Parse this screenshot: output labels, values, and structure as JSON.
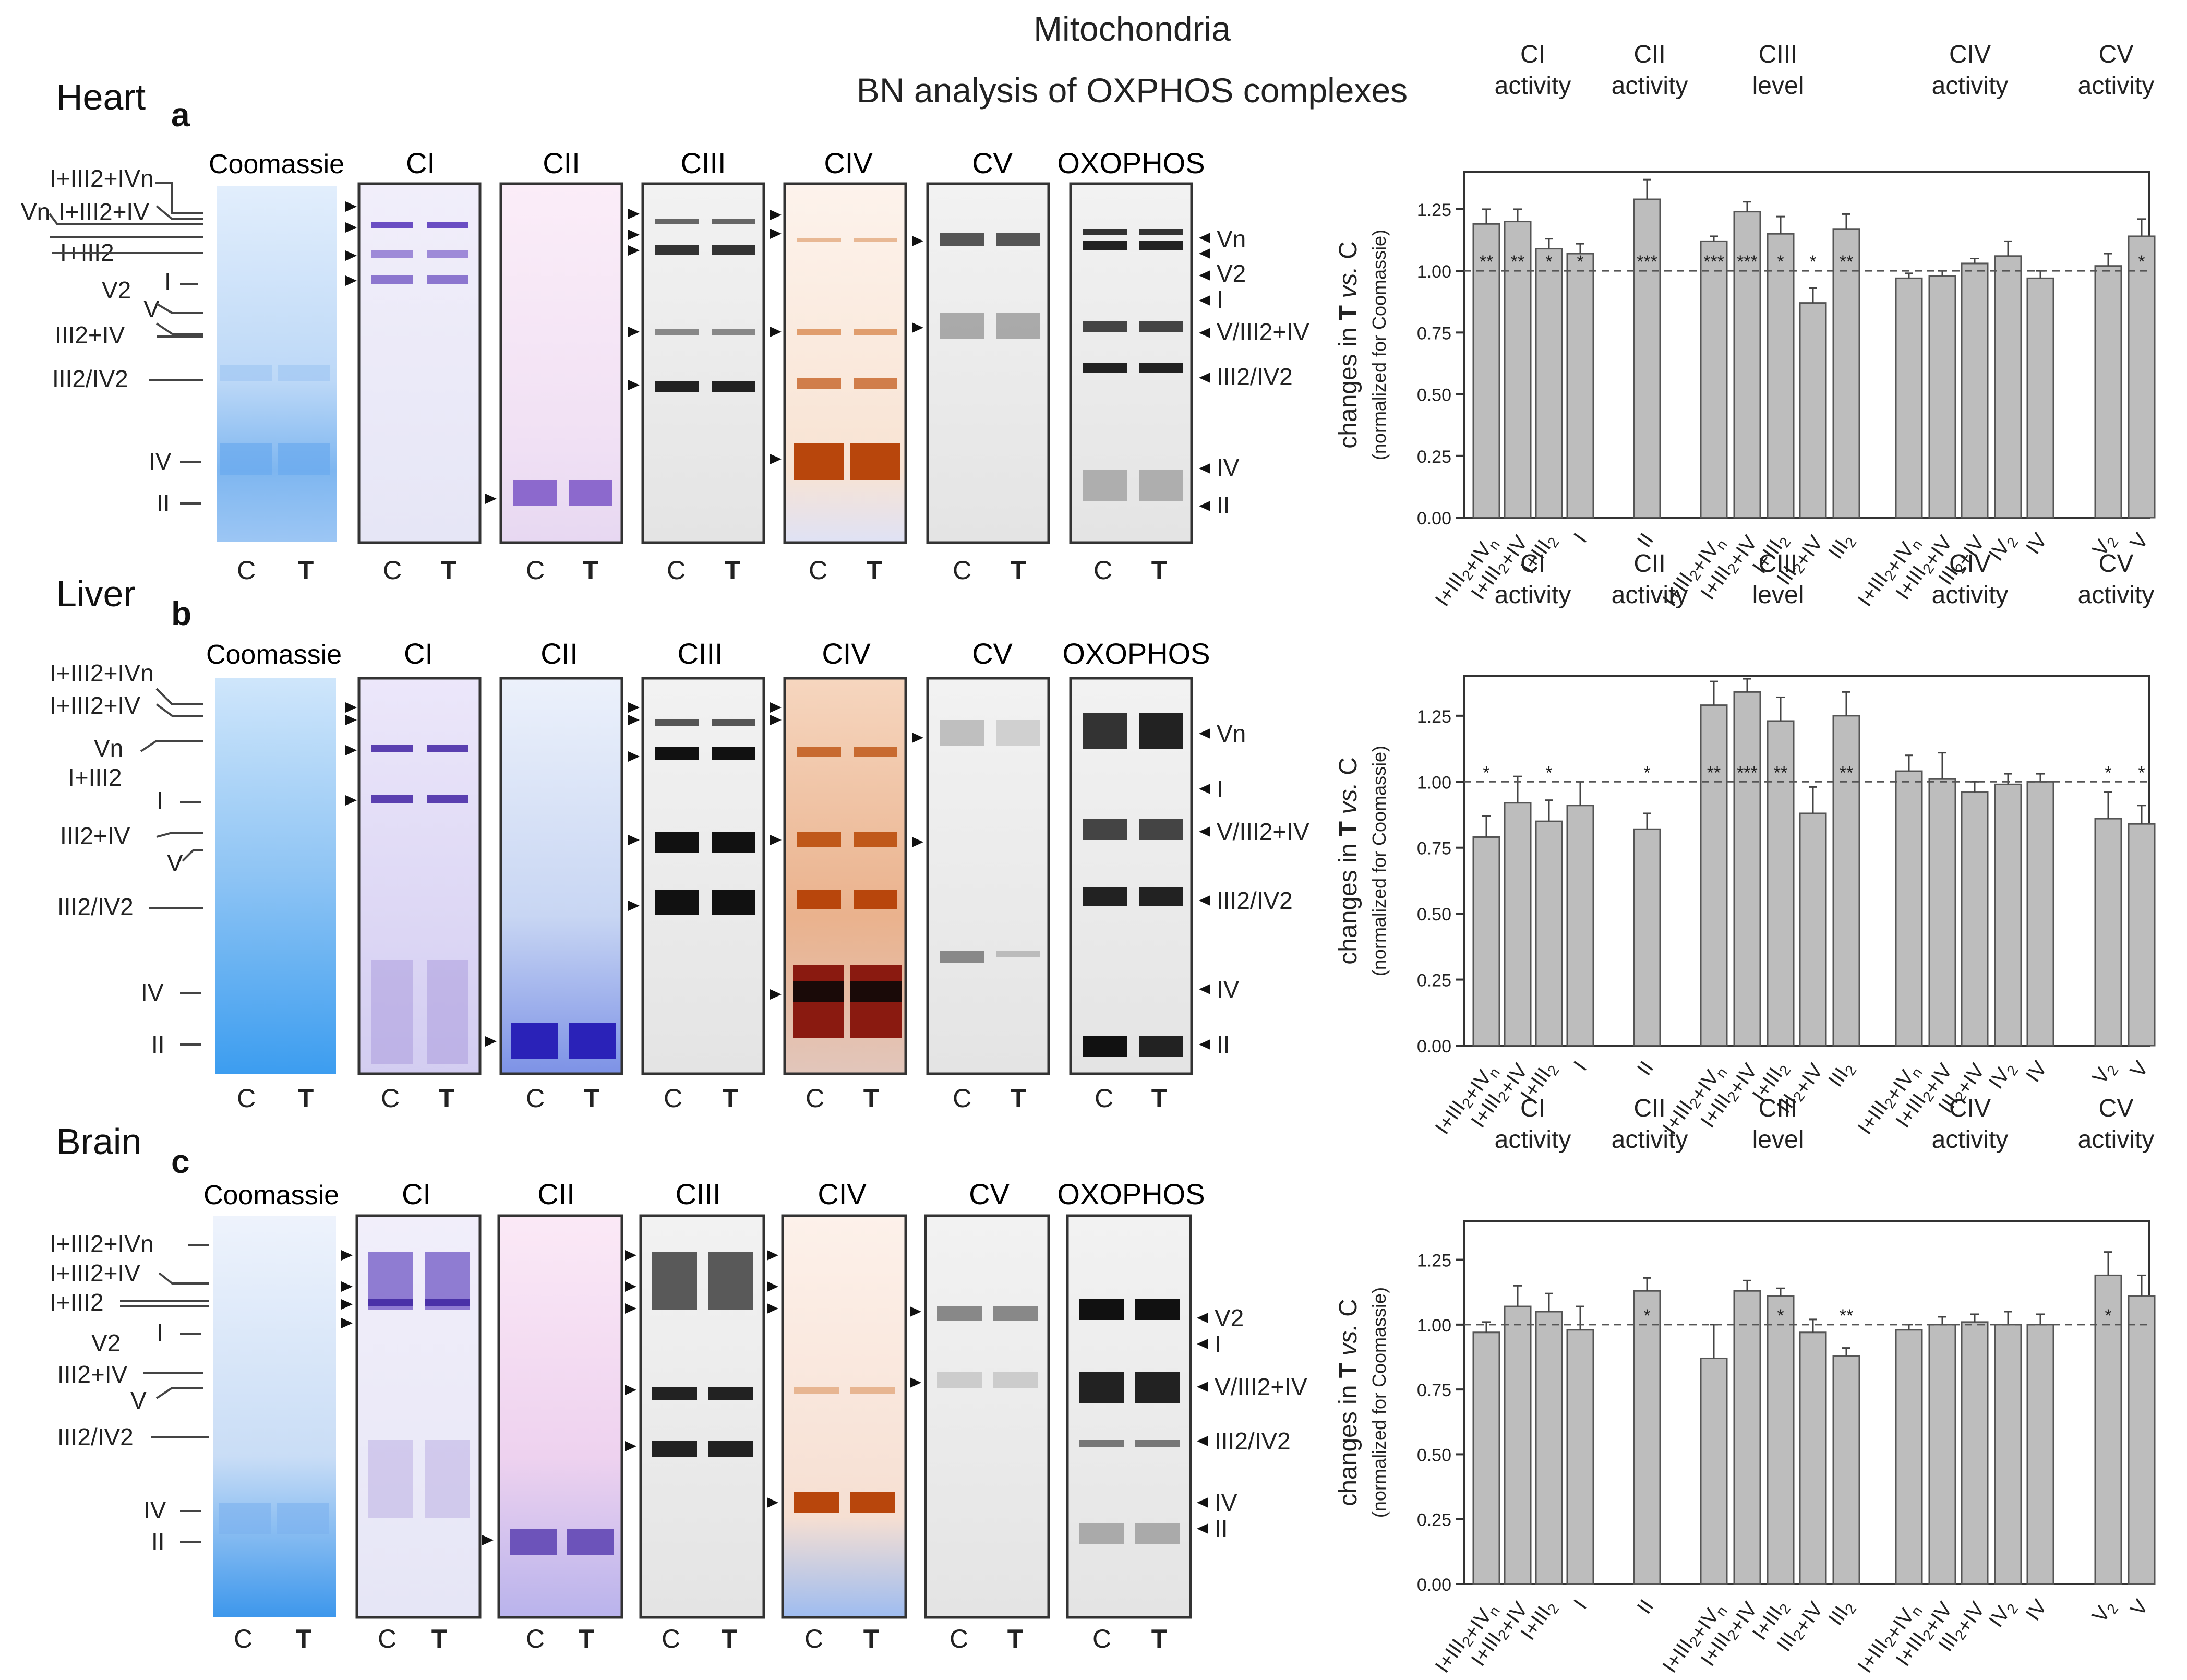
{
  "figure": {
    "title": "Mitochondria",
    "subtitle": "BN analysis of OXPHOS complexes"
  },
  "colors": {
    "bar_fill": "#bdbdbd",
    "bar_stroke": "#555555",
    "coomassie": "#3a9af0",
    "ci_band": "#5a3fb0",
    "cii_band": "#4030b0",
    "civ_band": "#b8460c",
    "western": "#111111"
  },
  "gel_columns": [
    "Coomassie",
    "CI",
    "CII",
    "CIII",
    "CIV",
    "CV",
    "OXOPHOS"
  ],
  "lane_labels": [
    "C",
    "T"
  ],
  "panels": [
    {
      "tissue": "Heart",
      "letter": "a",
      "left_markers": [
        "I+III2+IVn",
        "Vn",
        "I+III2+IV",
        "I+III2",
        "V2",
        "I",
        "V",
        "III2+IV",
        "III2/IV2",
        "IV",
        "II"
      ],
      "right_markers": [
        "Vn",
        "V2",
        "I",
        "V/III2+IV",
        "III2/IV2",
        "IV",
        "II"
      ]
    },
    {
      "tissue": "Liver",
      "letter": "b",
      "left_markers": [
        "I+III2+IVn",
        "I+III2+IV",
        "Vn",
        "I+III2",
        "I",
        "III2+IV",
        "V",
        "III2/IV2",
        "IV",
        "II"
      ],
      "right_markers": [
        "Vn",
        "I",
        "V/III2+IV",
        "III2/IV2",
        "IV",
        "II"
      ]
    },
    {
      "tissue": "Brain",
      "letter": "c",
      "left_markers": [
        "I+III2+IVn",
        "I+III2+IV",
        "I+III2",
        "I",
        "V2",
        "III2+IV",
        "V",
        "III2/IV2",
        "IV",
        "II"
      ],
      "right_markers": [
        "V2",
        "I",
        "V/III2+IV",
        "III2/IV2",
        "IV",
        "II"
      ]
    }
  ],
  "chart_data": [
    {
      "type": "bar",
      "panel": "a",
      "ylabel": "changes in T vs. C",
      "ylabel_sub": "(normalized for Coomassie)",
      "ylim": [
        0,
        1.4
      ],
      "yticks": [
        "0.00",
        "0.25",
        "0.50",
        "0.75",
        "1.00",
        "1.25"
      ],
      "reference_line": 1.0,
      "groups": [
        {
          "label": [
            "CI",
            "activity"
          ],
          "categories": [
            "I+III2+IVn",
            "I+III2+IV",
            "I+III2",
            "I"
          ],
          "values": [
            1.19,
            1.2,
            1.09,
            1.07
          ],
          "errors": [
            0.06,
            0.05,
            0.04,
            0.04
          ],
          "stars": [
            "**",
            "**",
            "*",
            "*"
          ]
        },
        {
          "label": [
            "CII",
            "activity"
          ],
          "categories": [
            "II"
          ],
          "values": [
            1.29
          ],
          "errors": [
            0.08
          ],
          "stars": [
            "***"
          ]
        },
        {
          "label": [
            "CIII",
            "level"
          ],
          "categories": [
            "I+III2+IVn",
            "I+III2+IV",
            "I+III2",
            "III2+IV",
            "III2"
          ],
          "values": [
            1.12,
            1.24,
            1.15,
            0.87,
            1.17
          ],
          "errors": [
            0.02,
            0.04,
            0.07,
            0.06,
            0.06
          ],
          "stars": [
            "***",
            "***",
            "*",
            "*",
            "**"
          ]
        },
        {
          "label": [
            "CIV",
            "activity"
          ],
          "categories": [
            "I+III2+IVn",
            "I+III2+IV",
            "III2+IV",
            "IV2",
            "IV"
          ],
          "values": [
            0.97,
            0.98,
            1.03,
            1.06,
            0.97
          ],
          "errors": [
            0.02,
            0.02,
            0.02,
            0.06,
            0.03
          ],
          "stars": [
            "",
            "",
            "",
            "",
            ""
          ]
        },
        {
          "label": [
            "CV",
            "activity"
          ],
          "categories": [
            "V2",
            "V"
          ],
          "values": [
            1.02,
            1.14
          ],
          "errors": [
            0.05,
            0.07
          ],
          "stars": [
            "",
            "*"
          ]
        }
      ]
    },
    {
      "type": "bar",
      "panel": "b",
      "ylabel": "changes in T vs. C",
      "ylabel_sub": "(normalized for Coomassie)",
      "ylim": [
        0,
        1.4
      ],
      "yticks": [
        "0.00",
        "0.25",
        "0.50",
        "0.75",
        "1.00",
        "1.25"
      ],
      "reference_line": 1.0,
      "groups": [
        {
          "label": [
            "CI",
            "activity"
          ],
          "categories": [
            "I+III2+IVn",
            "I+III2+IV",
            "I+III2",
            "I"
          ],
          "values": [
            0.79,
            0.92,
            0.85,
            0.91
          ],
          "errors": [
            0.08,
            0.1,
            0.08,
            0.09
          ],
          "stars": [
            "*",
            "",
            "*",
            ""
          ]
        },
        {
          "label": [
            "CII",
            "activity"
          ],
          "categories": [
            "II"
          ],
          "values": [
            0.82
          ],
          "errors": [
            0.06
          ],
          "stars": [
            "*"
          ]
        },
        {
          "label": [
            "CIII",
            "level"
          ],
          "categories": [
            "I+III2+IVn",
            "I+III2+IV",
            "I+III2",
            "III2+IV",
            "III2"
          ],
          "values": [
            1.29,
            1.34,
            1.23,
            0.88,
            1.25
          ],
          "errors": [
            0.09,
            0.05,
            0.09,
            0.1,
            0.09
          ],
          "stars": [
            "**",
            "***",
            "**",
            "",
            "**"
          ]
        },
        {
          "label": [
            "CIV",
            "activity"
          ],
          "categories": [
            "I+III2+IVn",
            "I+III2+IV",
            "III2+IV",
            "IV2",
            "IV"
          ],
          "values": [
            1.04,
            1.01,
            0.96,
            0.99,
            1.0
          ],
          "errors": [
            0.06,
            0.1,
            0.04,
            0.04,
            0.03
          ],
          "stars": [
            "",
            "",
            "",
            "",
            ""
          ]
        },
        {
          "label": [
            "CV",
            "activity"
          ],
          "categories": [
            "V2",
            "V"
          ],
          "values": [
            0.86,
            0.84
          ],
          "errors": [
            0.1,
            0.07
          ],
          "stars": [
            "*",
            "*"
          ]
        }
      ]
    },
    {
      "type": "bar",
      "panel": "c",
      "ylabel": "changes in T vs. C",
      "ylabel_sub": "(normalized for Coomassie)",
      "ylim": [
        0,
        1.4
      ],
      "yticks": [
        "0.00",
        "0.25",
        "0.50",
        "0.75",
        "1.00",
        "1.25"
      ],
      "reference_line": 1.0,
      "groups": [
        {
          "label": [
            "CI",
            "activity"
          ],
          "categories": [
            "I+III2+IVn",
            "I+III2+IV",
            "I+III2",
            "I"
          ],
          "values": [
            0.97,
            1.07,
            1.05,
            0.98
          ],
          "errors": [
            0.04,
            0.08,
            0.07,
            0.09
          ],
          "stars": [
            "",
            "",
            "",
            ""
          ]
        },
        {
          "label": [
            "CII",
            "activity"
          ],
          "categories": [
            "II"
          ],
          "values": [
            1.13
          ],
          "errors": [
            0.05
          ],
          "stars": [
            "*"
          ]
        },
        {
          "label": [
            "CIII",
            "level"
          ],
          "categories": [
            "I+III2+IVn",
            "I+III2+IV",
            "I+III2",
            "III2+IV",
            "III2"
          ],
          "values": [
            0.87,
            1.13,
            1.11,
            0.97,
            0.88
          ],
          "errors": [
            0.13,
            0.04,
            0.03,
            0.05,
            0.03
          ],
          "stars": [
            "",
            "",
            "*",
            "",
            "**"
          ]
        },
        {
          "label": [
            "CIV",
            "activity"
          ],
          "categories": [
            "I+III2+IVn",
            "I+III2+IV",
            "III2+IV",
            "IV2",
            "IV"
          ],
          "values": [
            0.98,
            1.0,
            1.01,
            1.0,
            1.0
          ],
          "errors": [
            0.02,
            0.03,
            0.03,
            0.05,
            0.04
          ],
          "stars": [
            "",
            "",
            "",
            "",
            ""
          ]
        },
        {
          "label": [
            "CV",
            "activity"
          ],
          "categories": [
            "V2",
            "V"
          ],
          "values": [
            1.19,
            1.11
          ],
          "errors": [
            0.09,
            0.08
          ],
          "stars": [
            "*",
            ""
          ]
        }
      ]
    }
  ]
}
